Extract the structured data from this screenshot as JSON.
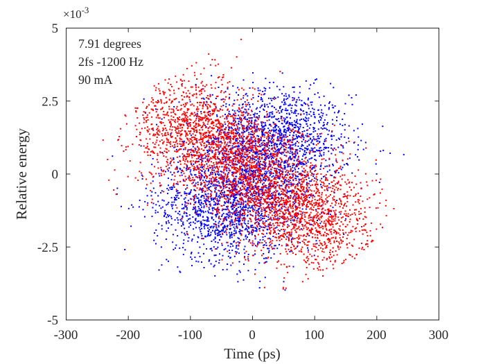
{
  "chart_data": {
    "type": "scatter",
    "title": "",
    "xlabel": "Time (ps)",
    "ylabel": "Relative energy",
    "xlim": [
      -300,
      300
    ],
    "ylim": [
      -5,
      5
    ],
    "y_exponent_label": "×10",
    "y_exponent_power": "-3",
    "xticks": [
      -300,
      -200,
      -100,
      0,
      100,
      200,
      300
    ],
    "xtick_labels": [
      "-300",
      "-200",
      "-100",
      "0",
      "100",
      "200",
      "300"
    ],
    "yticks": [
      -5,
      -2.5,
      0,
      2.5,
      5
    ],
    "ytick_labels": [
      "-5",
      "-2.5",
      "0",
      "2.5",
      "5"
    ],
    "annotations": [
      "7.91 degrees",
      "2fs -1200 Hz",
      "90 mA"
    ],
    "grid": false,
    "legend": "none",
    "series": [
      {
        "name": "blue",
        "color": "#0000ff",
        "count": 3200,
        "distributions": [
          {
            "weight": 0.3,
            "cx": 55,
            "cy": 1.3,
            "sx": 52,
            "sy": 0.85,
            "rho": -0.15
          },
          {
            "weight": 0.3,
            "cx": -55,
            "cy": -1.3,
            "sx": 52,
            "sy": 0.85,
            "rho": -0.15
          },
          {
            "weight": 0.4,
            "cx": 0,
            "cy": 0,
            "sx": 58,
            "sy": 1.15,
            "rho": -0.2
          }
        ],
        "points": [
          [
            244,
            0.65
          ],
          [
            222,
            0.7
          ],
          [
            205,
            -0.3
          ],
          [
            -217,
            -0.5
          ],
          [
            -225,
            0.6
          ],
          [
            -80,
            2.9
          ],
          [
            -90,
            -3.0
          ],
          [
            -40,
            -3.1
          ],
          [
            -23,
            -3.7
          ],
          [
            -135,
            -3.0
          ],
          [
            -155,
            -2.4
          ],
          [
            -195,
            -1.8
          ],
          [
            100,
            -2.8
          ],
          [
            150,
            2.4
          ],
          [
            160,
            2.6
          ],
          [
            -205,
            -2.6
          ],
          [
            -150,
            -3.3
          ],
          [
            -120,
            -3.2
          ],
          [
            -60,
            -3.5
          ]
        ]
      },
      {
        "name": "red",
        "color": "#ff0000",
        "count": 3800,
        "distributions": [
          {
            "weight": 0.3,
            "cx": -95,
            "cy": 1.4,
            "sx": 52,
            "sy": 0.95,
            "rho": -0.1
          },
          {
            "weight": 0.3,
            "cx": 95,
            "cy": -1.4,
            "sx": 52,
            "sy": 0.95,
            "rho": -0.1
          },
          {
            "weight": 0.4,
            "cx": 0,
            "cy": 0,
            "sx": 55,
            "sy": 1.1,
            "rho": -0.3
          }
        ],
        "points": [
          [
            -18,
            4.6
          ],
          [
            -240,
            1.15
          ],
          [
            -105,
            3.6
          ],
          [
            -90,
            3.8
          ],
          [
            -60,
            3.9
          ],
          [
            -25,
            4.0
          ],
          [
            20,
            -3.9
          ],
          [
            50,
            -3.9
          ],
          [
            200,
            -1.9
          ],
          [
            215,
            -1.1
          ],
          [
            228,
            -1.2
          ],
          [
            180,
            -2.6
          ],
          [
            -70,
            4.1
          ],
          [
            45,
            3.5
          ],
          [
            -160,
            2.2
          ],
          [
            -180,
            1.4
          ],
          [
            -200,
            -0.1
          ],
          [
            165,
            -2.9
          ],
          [
            110,
            -3.3
          ],
          [
            90,
            -3.6
          ]
        ]
      }
    ]
  }
}
